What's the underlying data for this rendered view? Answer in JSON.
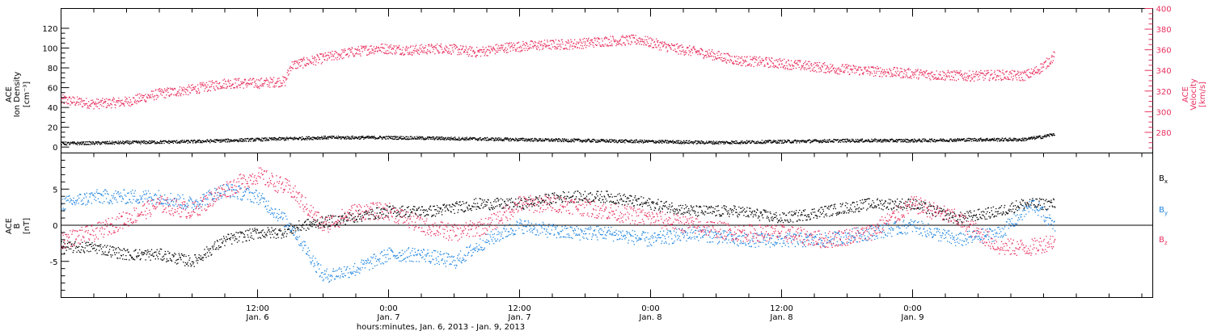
{
  "colors": {
    "black": "#000000",
    "pink": "#e8305f",
    "blue": "#1f85e0"
  },
  "chart_data": [
    {
      "type": "scatter",
      "panel": "top",
      "ylabel_lines": [
        "ACE",
        "Ion Density"
      ],
      "ylabel_unit": "[cm⁻³]",
      "y2label_lines": [
        "ACE",
        "Velocity"
      ],
      "y2label_unit": "[km/s]",
      "ylim": [
        -6,
        140
      ],
      "yticks": [
        0,
        20,
        40,
        60,
        80,
        100,
        120
      ],
      "y2lim": [
        260,
        400
      ],
      "y2ticks": [
        280,
        300,
        320,
        340,
        360,
        380,
        400
      ],
      "x_range_hours": [
        -6,
        94
      ],
      "series": [
        {
          "color_key": "pink",
          "axis": "right",
          "anchors_h": [
            -6,
            -3,
            0,
            3,
            6,
            9,
            12,
            14.5,
            15,
            17,
            20,
            23,
            26,
            29,
            32,
            35,
            38,
            41,
            44,
            47,
            50,
            53,
            56,
            59,
            62,
            65,
            68,
            71,
            74,
            77,
            80,
            82,
            83,
            84,
            85
          ],
          "anchors_v": [
            312,
            308,
            310,
            318,
            322,
            328,
            328,
            330,
            345,
            350,
            357,
            362,
            360,
            362,
            358,
            363,
            365,
            366,
            369,
            370,
            362,
            357,
            350,
            348,
            345,
            342,
            340,
            338,
            336,
            335,
            336,
            335,
            338,
            345,
            355
          ],
          "jitter": 5
        },
        {
          "color_key": "black",
          "axis": "left",
          "anchors_h": [
            -6,
            0,
            6,
            12,
            15,
            18,
            24,
            30,
            36,
            42,
            48,
            54,
            60,
            66,
            72,
            78,
            82,
            84,
            85
          ],
          "anchors_v": [
            4,
            5,
            6,
            8,
            9,
            10,
            10,
            9,
            8,
            7,
            6,
            5,
            6,
            7,
            7,
            8,
            8,
            11,
            14
          ],
          "jitter": 1.6
        }
      ]
    },
    {
      "type": "scatter",
      "panel": "bottom",
      "ylabel_lines": [
        "ACE",
        "B"
      ],
      "ylabel_unit": "[nT]",
      "ylim": [
        -10,
        10
      ],
      "yticks": [
        -5,
        0,
        5
      ],
      "x_range_hours": [
        -6,
        94
      ],
      "series": [
        {
          "name": "Bx",
          "label_main": "B",
          "label_sub": "x",
          "color_key": "black",
          "anchors_h": [
            -6,
            -3,
            0,
            3,
            6,
            9,
            12,
            14,
            16,
            20,
            24,
            28,
            32,
            36,
            40,
            44,
            48,
            52,
            56,
            60,
            64,
            68,
            72,
            76,
            80,
            82,
            84,
            85
          ],
          "anchors_v": [
            -3,
            -3,
            -4,
            -4,
            -5,
            -2,
            -1,
            -1,
            0,
            1,
            2,
            2,
            3,
            3,
            4,
            4,
            3,
            2,
            2,
            1,
            2,
            3,
            3,
            1,
            2,
            3,
            3,
            3
          ],
          "jitter": 0.8
        },
        {
          "name": "By",
          "label_main": "B",
          "label_sub": "y",
          "color_key": "blue",
          "anchors_h": [
            -6,
            -3,
            0,
            3,
            6,
            9,
            12,
            15,
            18,
            21,
            24,
            27,
            30,
            33,
            36,
            40,
            44,
            48,
            52,
            56,
            60,
            64,
            68,
            72,
            76,
            80,
            83,
            85
          ],
          "anchors_v": [
            3,
            4,
            4,
            4,
            3,
            5,
            4,
            0,
            -7,
            -6,
            -4,
            -4,
            -5,
            -2,
            0,
            -1,
            -1,
            -2,
            -1,
            -2,
            -2,
            -2,
            -1,
            0,
            -2,
            -1,
            3,
            0
          ],
          "jitter": 1.0
        },
        {
          "name": "Bz",
          "label_main": "B",
          "label_sub": "z",
          "color_key": "pink",
          "anchors_h": [
            -6,
            -3,
            0,
            3,
            6,
            9,
            12,
            15,
            18,
            21,
            24,
            27,
            30,
            33,
            36,
            40,
            44,
            48,
            52,
            56,
            60,
            64,
            68,
            72,
            76,
            80,
            83,
            85
          ],
          "anchors_v": [
            -2,
            -1,
            1,
            3,
            2,
            5,
            7,
            5,
            0,
            2,
            2,
            0,
            -1,
            0,
            3,
            3,
            2,
            1,
            0,
            -1,
            -1,
            -2,
            -1,
            3,
            1,
            -3,
            -3,
            -2
          ],
          "jitter": 1.2
        }
      ]
    }
  ],
  "x_axis": {
    "ticks": [
      {
        "hour": 12,
        "time": "12:00",
        "date": "Jan. 6"
      },
      {
        "hour": 24,
        "time": "0:00",
        "date": "Jan. 7"
      },
      {
        "hour": 36,
        "time": "12:00",
        "date": "Jan. 7"
      },
      {
        "hour": 48,
        "time": "0:00",
        "date": "Jan. 8"
      },
      {
        "hour": 60,
        "time": "12:00",
        "date": "Jan. 8"
      },
      {
        "hour": 72,
        "time": "0:00",
        "date": "Jan. 9"
      }
    ],
    "minor_hours": [
      -6,
      -3,
      0,
      3,
      6,
      9,
      15,
      18,
      21,
      27,
      30,
      33,
      39,
      42,
      45,
      51,
      54,
      57,
      63,
      66,
      69,
      75,
      78,
      81,
      84,
      87,
      90,
      93
    ],
    "title": "hours:minutes, Jan.  6, 2013 - Jan.  9, 2013"
  }
}
